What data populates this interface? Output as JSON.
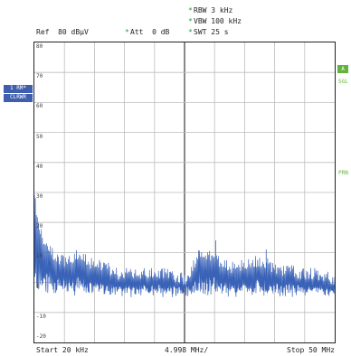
{
  "header": {
    "rbw": "RBW 3 kHz",
    "vbw": "VBW 100 kHz",
    "swt": "SWT 25 s",
    "ref": "Ref  80 dBµV",
    "att": "Att  0 dB",
    "star": "*"
  },
  "left_panel": {
    "trace_box": "1 RM*",
    "trace_box_sub": "CLRWR"
  },
  "right_panel": {
    "a_box": "A",
    "sgl": "SGL",
    "prn": "PRN"
  },
  "footer": {
    "start": "Start 20 kHz",
    "div": "4.998 MHz/",
    "stop": "Stop 50 MHz"
  },
  "y_ticks": [
    "80",
    "70",
    "60",
    "50",
    "40",
    "30",
    "20",
    "10",
    "0",
    "-10",
    "-20"
  ],
  "colors": {
    "trace": "#3a63b8",
    "grid": "#bdbdbd",
    "marker_green": "#2d9a3a"
  },
  "chart_data": {
    "type": "line",
    "xlabel": "",
    "ylabel": "",
    "x_range_mhz": [
      0.02,
      50
    ],
    "ylim": [
      -20,
      80
    ],
    "grid": true,
    "series": [
      {
        "x": [
          0.02,
          0.5,
          1,
          2,
          3,
          4,
          5,
          6,
          7,
          8,
          9,
          10,
          11,
          12,
          13,
          14,
          15,
          16,
          17,
          18,
          19,
          20,
          21,
          22,
          23,
          24,
          25,
          26,
          27,
          28,
          29,
          30,
          31,
          32,
          33,
          34,
          35,
          36,
          37,
          38,
          39,
          40,
          41,
          42,
          43,
          44,
          45,
          46,
          47,
          48,
          49,
          50
        ],
        "y": [
          27,
          20,
          15,
          10,
          8,
          6,
          5,
          6,
          7,
          6,
          5,
          4,
          4,
          3,
          2,
          1,
          1,
          1,
          1,
          1,
          1,
          1,
          1,
          1,
          0,
          0,
          -1,
          1,
          7,
          8,
          7,
          6,
          5,
          4,
          3,
          3,
          4,
          4,
          5,
          5,
          4,
          3,
          2,
          2,
          2,
          1,
          1,
          1,
          1,
          0,
          0,
          -1
        ]
      }
    ]
  }
}
